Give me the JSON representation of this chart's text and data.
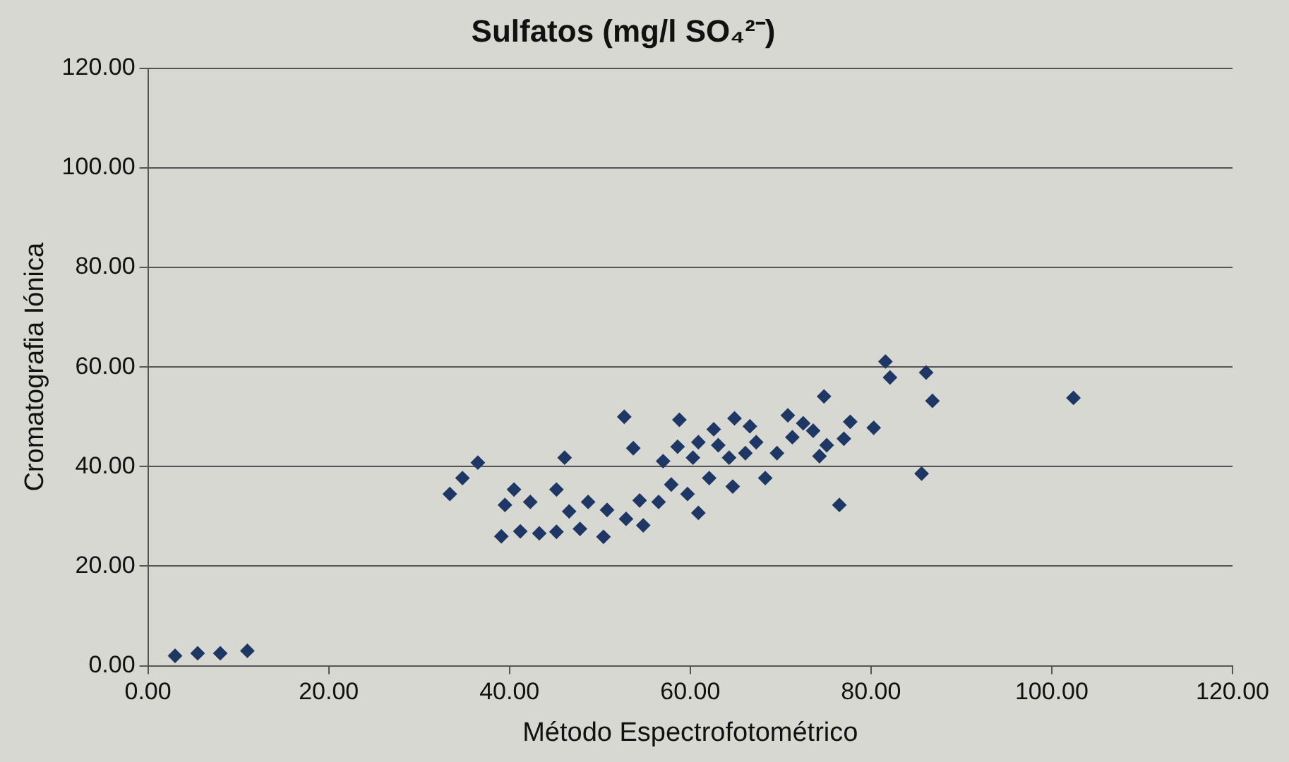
{
  "chart_data": {
    "type": "scatter",
    "title": "Sulfatos (mg/l SO₄²⁻)",
    "xlabel": "Método Espectrofotométrico",
    "ylabel": "Cromatografia Iónica",
    "series": [
      {
        "color": "#1f3764",
        "x": [
          3,
          5.5,
          8,
          11,
          33.4,
          34.8,
          36.5,
          39.1,
          39.5,
          40.5,
          41.2,
          42.3,
          43.3,
          45.2,
          46.1,
          47.8,
          45.2,
          46.6,
          50.4,
          50.8,
          52.9,
          54.4,
          54.8,
          56.5,
          48.7,
          52.7,
          53.7,
          58.8,
          58.6,
          57,
          74.8,
          81.6,
          82.1,
          86.1,
          86.8,
          102.4,
          80.3,
          85.6,
          76.5,
          68.3,
          77.7,
          77,
          74.3,
          75.1,
          60.9,
          64.7,
          62.1,
          57.9,
          59.7,
          60.9,
          62.6,
          64.9,
          66.6,
          66.1,
          64.3,
          63.1,
          67.3,
          69.6,
          70.8,
          72.5,
          73.6,
          71.3,
          60.3
        ],
        "values": [
          2,
          2.5,
          2.5,
          3,
          34.5,
          37.7,
          40.8,
          26,
          32.3,
          35.4,
          27,
          32.9,
          26.6,
          26.9,
          41.8,
          27.5,
          35.4,
          31,
          25.9,
          31.3,
          29.5,
          33.2,
          28.2,
          32.9,
          32.9,
          50,
          43.7,
          49.4,
          44,
          41.1,
          54.1,
          61.1,
          57.9,
          58.9,
          53.2,
          53.8,
          47.8,
          38.6,
          32.3,
          37.7,
          49,
          45.6,
          42.1,
          44.3,
          30.7,
          36,
          37.7,
          36.4,
          34.5,
          44.9,
          47.5,
          49.7,
          48.1,
          42.7,
          41.8,
          44.3,
          44.9,
          42.7,
          50.3,
          48.7,
          47.2,
          45.9,
          41.8
        ]
      }
    ],
    "xlim": [
      0,
      120
    ],
    "xticks": [
      {
        "value": 0,
        "label": "0.00"
      },
      {
        "value": 20,
        "label": "20.00"
      },
      {
        "value": 40,
        "label": "40.00"
      },
      {
        "value": 60,
        "label": "60.00"
      },
      {
        "value": 80,
        "label": "80.00"
      },
      {
        "value": 100,
        "label": "100.00"
      },
      {
        "value": 120,
        "label": "120.00"
      }
    ],
    "ylim": [
      0,
      120
    ],
    "yticks": [
      {
        "value": 0,
        "label": "0.00"
      },
      {
        "value": 20,
        "label": "20.00"
      },
      {
        "value": 40,
        "label": "40.00"
      },
      {
        "value": 60,
        "label": "60.00"
      },
      {
        "value": 80,
        "label": "80.00"
      },
      {
        "value": 100,
        "label": "100.00"
      },
      {
        "value": 120,
        "label": "120.00"
      }
    ],
    "grid": "y",
    "marker": "diamond"
  }
}
